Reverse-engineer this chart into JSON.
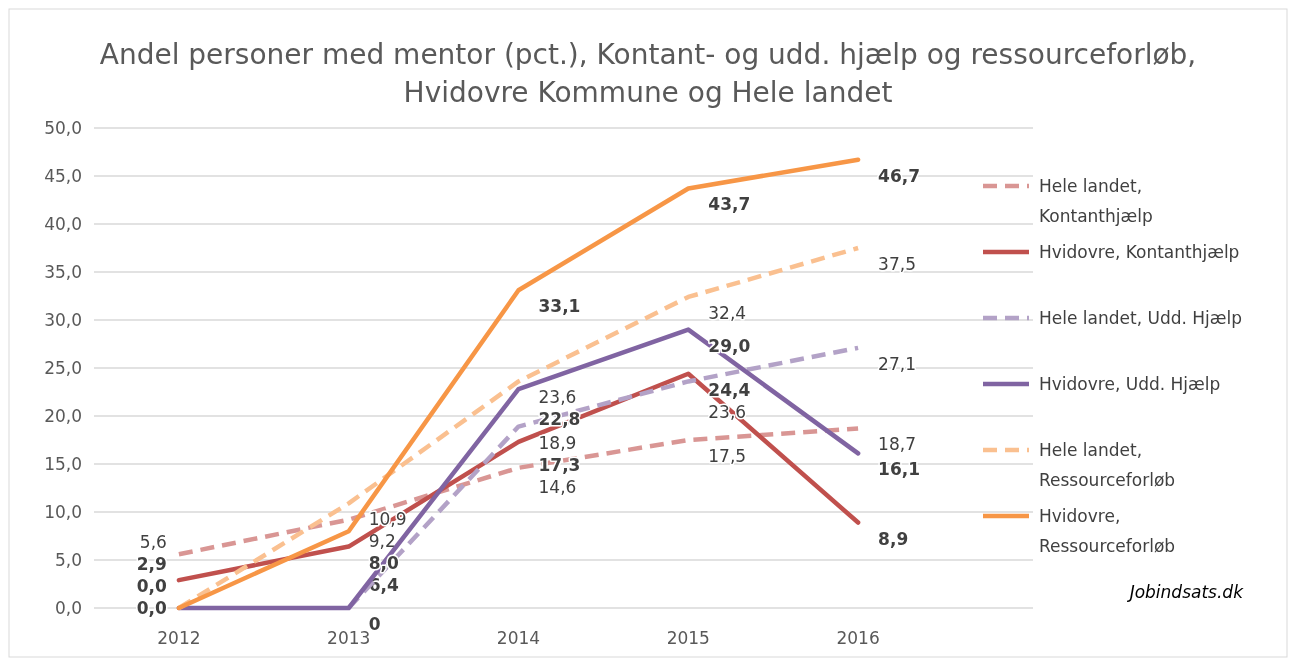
{
  "chart_data": {
    "type": "line",
    "title": "Andel personer med mentor (pct.), Kontant- og udd. hjælp og ressourceforløb, Hvidovre Kommune og Hele landet",
    "categories": [
      "2012",
      "2013",
      "2014",
      "2015",
      "2016"
    ],
    "ylim": [
      0,
      50
    ],
    "yticks": [
      {
        "value": 0,
        "label": "0,0"
      },
      {
        "value": 5,
        "label": "5,0"
      },
      {
        "value": 10,
        "label": "10,0"
      },
      {
        "value": 15,
        "label": "15,0"
      },
      {
        "value": 20,
        "label": "20,0"
      },
      {
        "value": 25,
        "label": "25,0"
      },
      {
        "value": 30,
        "label": "30,0"
      },
      {
        "value": 35,
        "label": "35,0"
      },
      {
        "value": 40,
        "label": "40,0"
      },
      {
        "value": 45,
        "label": "45,0"
      },
      {
        "value": 50,
        "label": "50,0"
      }
    ],
    "grid": "y",
    "legend": "right",
    "marker": "none",
    "annotations": [
      "Jobindsats.dk"
    ],
    "series": [
      {
        "name": "Hele landet, Kontanthjælp",
        "color": "#d99694",
        "line_style": "dashed",
        "values": [
          5.6,
          9.2,
          14.6,
          17.5,
          18.7
        ],
        "value_labels": [
          "5,6",
          "9,2",
          "14,6",
          "17,5",
          "18,7"
        ]
      },
      {
        "name": "Hvidovre, Kontanthjælp",
        "color": "#c0504d",
        "line_style": "solid",
        "values": [
          2.9,
          6.4,
          17.3,
          24.4,
          8.9
        ],
        "value_labels": [
          "2,9",
          "6,4",
          "17,3",
          "24,4",
          "8,9"
        ]
      },
      {
        "name": "Hele landet, Udd. Hjælp",
        "color": "#b3a2c7",
        "line_style": "dashed",
        "values": [
          null,
          0,
          18.9,
          23.6,
          27.1
        ],
        "value_labels": [
          null,
          null,
          "18,9",
          "23,6",
          "27,1"
        ]
      },
      {
        "name": "Hvidovre, Udd. Hjælp",
        "color": "#8064a2",
        "line_style": "solid",
        "values": [
          0,
          0,
          22.8,
          29.0,
          16.1
        ],
        "value_labels": [
          "0,0",
          "0",
          "22,8",
          "29,0",
          "16,1"
        ]
      },
      {
        "name": "Hele landet, Ressourceforløb",
        "color": "#fac090",
        "line_style": "dashed",
        "values": [
          0,
          10.9,
          23.6,
          32.4,
          37.5
        ],
        "value_labels": [
          null,
          "10,9",
          "23,6",
          "32,4",
          "37,5"
        ]
      },
      {
        "name": "Hvidovre, Ressourceforløb",
        "color": "#f79646",
        "line_style": "solid",
        "values": [
          0,
          8.0,
          33.1,
          43.7,
          46.7
        ],
        "value_labels": [
          "0,0",
          "8,0",
          "33,1",
          "43,7",
          "46,7"
        ]
      }
    ]
  }
}
